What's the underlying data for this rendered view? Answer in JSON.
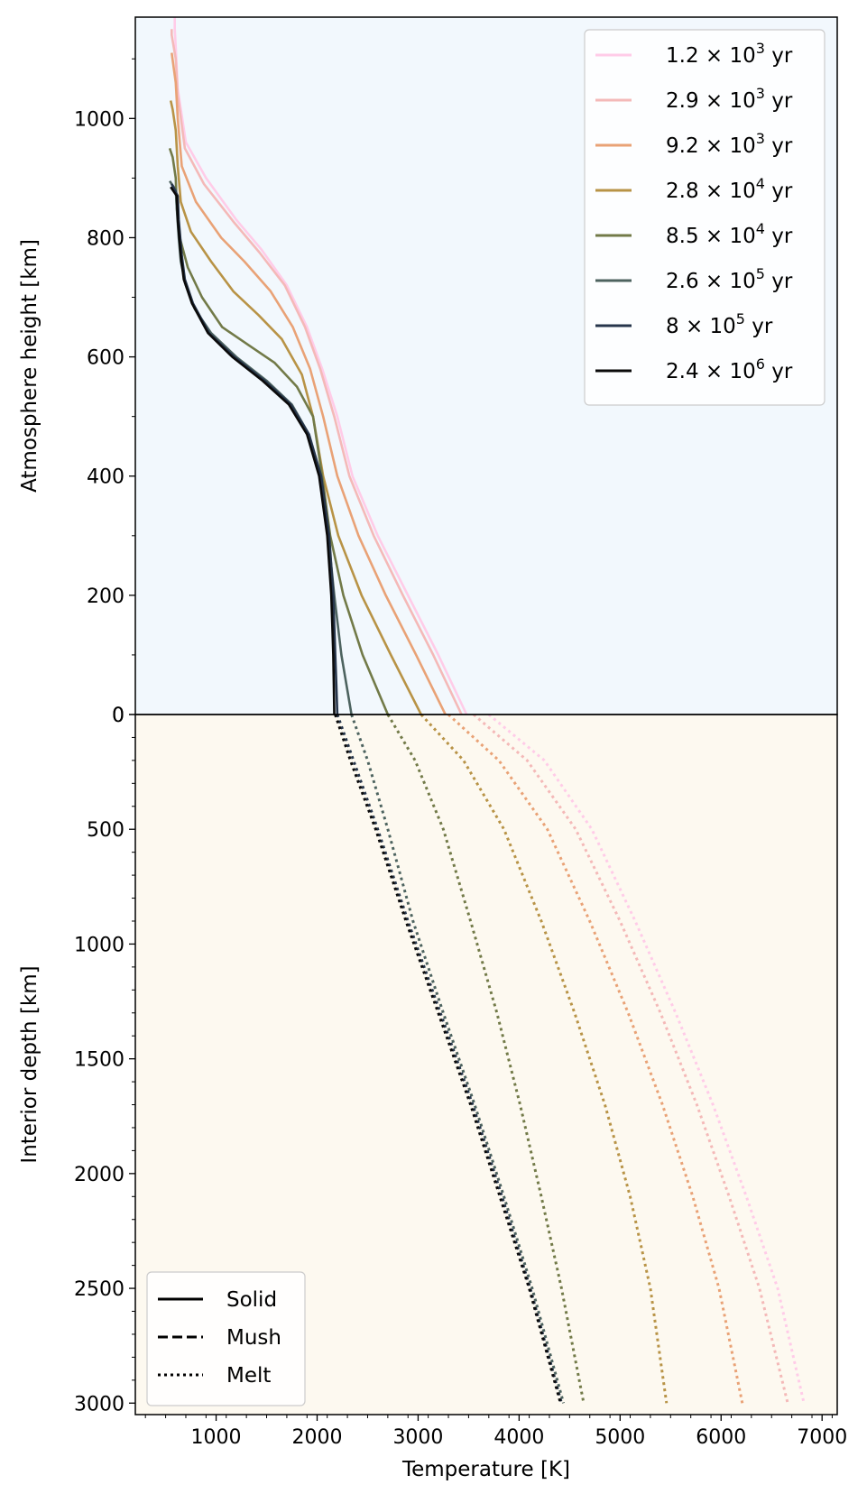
{
  "chart_data": [
    {
      "panel": "atmosphere",
      "type": "line",
      "xlabel": "Temperature [K]",
      "ylabel": "Atmosphere height [km]",
      "xlim": [
        200,
        7150
      ],
      "ylim": [
        0,
        1170
      ],
      "xticks": [
        1000,
        2000,
        3000,
        4000,
        5000,
        6000,
        7000
      ],
      "yticks": [
        0,
        200,
        400,
        600,
        800,
        1000
      ],
      "background": "#f2f8fd",
      "legend": {
        "placement": "top-right"
      },
      "series": [
        {
          "name": "1.2 × 10³ yr",
          "base": "1.2 × 10",
          "exp": "3",
          "unit": " yr",
          "color": "#ffcce8",
          "x": [
            3480,
            3200,
            2900,
            2600,
            2350,
            2200,
            2050,
            1900,
            1700,
            1450,
            1200,
            900,
            700,
            620,
            600,
            590,
            590
          ],
          "y": [
            0,
            100,
            200,
            300,
            400,
            500,
            580,
            650,
            720,
            780,
            830,
            900,
            960,
            1050,
            1120,
            1150,
            1170
          ]
        },
        {
          "name": "2.9 × 10³ yr",
          "base": "2.9 × 10",
          "exp": "3",
          "unit": " yr",
          "color": "#f4b9b8",
          "x": [
            3430,
            3150,
            2850,
            2560,
            2320,
            2170,
            2030,
            1880,
            1680,
            1430,
            1180,
            880,
            690,
            620,
            600,
            560,
            560
          ],
          "y": [
            0,
            100,
            200,
            300,
            400,
            500,
            580,
            650,
            720,
            775,
            825,
            890,
            950,
            1040,
            1100,
            1140,
            1150
          ]
        },
        {
          "name": "9.2 × 10³ yr",
          "base": "9.2 × 10",
          "exp": "3",
          "unit": " yr",
          "color": "#e9a276",
          "x": [
            3270,
            2980,
            2680,
            2410,
            2200,
            2060,
            1930,
            1760,
            1540,
            1280,
            1050,
            800,
            660,
            620,
            600,
            560
          ],
          "y": [
            0,
            100,
            200,
            300,
            400,
            500,
            580,
            650,
            710,
            760,
            800,
            860,
            920,
            1000,
            1060,
            1110
          ]
        },
        {
          "name": "2.8 × 10⁴ yr",
          "base": "2.8 × 10",
          "exp": "4",
          "unit": " yr",
          "color": "#b89346",
          "x": [
            3030,
            2730,
            2440,
            2210,
            2060,
            1960,
            1850,
            1650,
            1420,
            1170,
            950,
            750,
            650,
            620,
            600,
            570,
            550
          ],
          "y": [
            0,
            100,
            200,
            300,
            400,
            500,
            570,
            630,
            670,
            710,
            760,
            810,
            860,
            920,
            980,
            1015,
            1030
          ]
        },
        {
          "name": "8.5 × 10⁴ yr",
          "base": "8.5 × 10",
          "exp": "4",
          "unit": " yr",
          "color": "#727a48",
          "x": [
            2700,
            2450,
            2260,
            2130,
            2050,
            1960,
            1800,
            1580,
            1320,
            1060,
            860,
            720,
            640,
            610,
            600,
            570,
            540
          ],
          "y": [
            0,
            100,
            200,
            300,
            400,
            500,
            550,
            590,
            620,
            650,
            700,
            750,
            800,
            850,
            900,
            935,
            950
          ]
        },
        {
          "name": "2.6 × 10⁵ yr",
          "base": "2.6 × 10",
          "exp": "5",
          "unit": " yr",
          "color": "#4d635f",
          "x": [
            2340,
            2240,
            2170,
            2110,
            2030,
            1920,
            1750,
            1500,
            1200,
            950,
            790,
            700,
            650,
            630,
            610,
            600,
            540
          ],
          "y": [
            0,
            100,
            200,
            300,
            400,
            470,
            520,
            560,
            600,
            640,
            680,
            720,
            760,
            800,
            850,
            880,
            895
          ]
        },
        {
          "name": "8 × 10⁵ yr",
          "base": "8 × 10",
          "exp": "5",
          "unit": " yr",
          "color": "#26354b",
          "x": [
            2200,
            2190,
            2180,
            2160,
            2120,
            2040,
            1920,
            1740,
            1480,
            1180,
            930,
            770,
            690,
            660,
            630,
            620,
            560
          ],
          "y": [
            0,
            50,
            100,
            200,
            300,
            400,
            470,
            520,
            560,
            600,
            640,
            690,
            730,
            770,
            830,
            870,
            890
          ]
        },
        {
          "name": "2.4 × 10⁶ yr",
          "base": "2.4 × 10",
          "exp": "6",
          "unit": " yr",
          "color": "#0a0a0a",
          "x": [
            2170,
            2165,
            2160,
            2140,
            2100,
            2020,
            1900,
            1720,
            1460,
            1160,
            920,
            760,
            680,
            650,
            620,
            610,
            550
          ],
          "y": [
            0,
            50,
            100,
            200,
            300,
            400,
            470,
            520,
            560,
            600,
            640,
            690,
            730,
            770,
            830,
            870,
            885
          ]
        }
      ]
    },
    {
      "panel": "interior",
      "type": "line",
      "xlabel": "Temperature [K]",
      "ylabel": "Interior depth [km]",
      "xlim": [
        200,
        7150
      ],
      "ylim": [
        0,
        3050
      ],
      "yinverted": true,
      "xticks": [
        1000,
        2000,
        3000,
        4000,
        5000,
        6000,
        7000
      ],
      "yticks": [
        0,
        500,
        1000,
        1500,
        2000,
        2500,
        3000
      ],
      "background": "#fdf9f0",
      "legend": {
        "placement": "bottom-left",
        "entries": [
          "Solid",
          "Mush",
          "Melt"
        ]
      },
      "series": [
        {
          "name": "1.2 × 10³ yr",
          "style": "Melt",
          "color": "#ffcce8",
          "x": [
            3700,
            4250,
            4720,
            5150,
            5550,
            5920,
            6250,
            6560,
            6820
          ],
          "y": [
            0,
            200,
            500,
            900,
            1300,
            1700,
            2100,
            2500,
            3000
          ]
        },
        {
          "name": "2.9 × 10³ yr",
          "style": "Melt",
          "color": "#f4b9b8",
          "x": [
            3550,
            4080,
            4560,
            5000,
            5400,
            5760,
            6080,
            6380,
            6660
          ],
          "y": [
            0,
            200,
            500,
            900,
            1300,
            1700,
            2100,
            2500,
            3000
          ]
        },
        {
          "name": "9.2 × 10³ yr",
          "style": "Melt",
          "color": "#e9a276",
          "x": [
            3300,
            3800,
            4280,
            4700,
            5080,
            5420,
            5720,
            5980,
            6210
          ],
          "y": [
            0,
            200,
            500,
            900,
            1300,
            1700,
            2100,
            2500,
            3000
          ]
        },
        {
          "name": "2.8 × 10⁴ yr",
          "style": "Melt",
          "color": "#b89346",
          "x": [
            3030,
            3450,
            3850,
            4220,
            4550,
            4850,
            5100,
            5300,
            5460
          ],
          "y": [
            0,
            200,
            500,
            900,
            1300,
            1700,
            2100,
            2500,
            3000
          ]
        },
        {
          "name": "8.5 × 10⁴ yr",
          "style": "Melt",
          "color": "#727a48",
          "x": [
            2700,
            2970,
            3250,
            3520,
            3780,
            4010,
            4220,
            4420,
            4640
          ],
          "y": [
            0,
            200,
            500,
            900,
            1300,
            1700,
            2100,
            2500,
            3000
          ]
        },
        {
          "name": "2.6 × 10⁵ yr",
          "style": "Melt",
          "color": "#4d635f",
          "x": [
            2340,
            2500,
            2700,
            2950,
            3250,
            3560,
            3850,
            4130,
            4440
          ],
          "y": [
            0,
            200,
            500,
            900,
            1300,
            1700,
            2100,
            2500,
            3000
          ]
        },
        {
          "name": "8 × 10⁵ yr",
          "style": "Melt",
          "color": "#26354b",
          "x": [
            2200,
            2360,
            2600,
            2900,
            3220,
            3540,
            3830,
            4110,
            4420
          ],
          "y": [
            0,
            200,
            500,
            900,
            1300,
            1700,
            2100,
            2500,
            3000
          ]
        },
        {
          "name": "2.4 × 10⁶ yr",
          "style": "Melt",
          "color": "#0a0a0a",
          "x": [
            2180,
            2330,
            2580,
            2880,
            3200,
            3520,
            3810,
            4100,
            4410
          ],
          "y": [
            0,
            200,
            500,
            900,
            1300,
            1700,
            2100,
            2500,
            3000
          ]
        }
      ]
    }
  ]
}
